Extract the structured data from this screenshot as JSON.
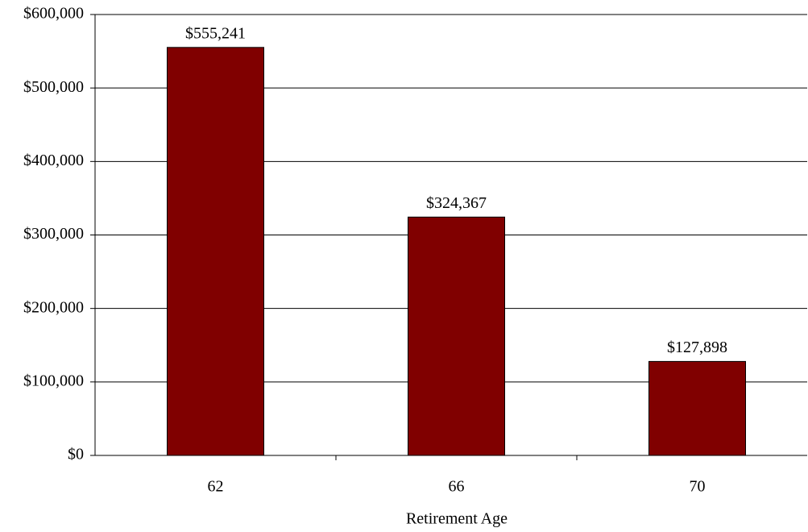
{
  "chart_data": {
    "type": "bar",
    "x_label": "Retirement Age",
    "categories": [
      "62",
      "66",
      "70"
    ],
    "values": [
      555241,
      324367,
      127898
    ],
    "value_labels": [
      "$555,241",
      "$324,367",
      "$127,898"
    ],
    "color": "#800000",
    "ylim": [
      0,
      600000
    ],
    "yticks": [
      {
        "value": 0,
        "label": "$0"
      },
      {
        "value": 100000,
        "label": "$100,000"
      },
      {
        "value": 200000,
        "label": "$200,000"
      },
      {
        "value": 300000,
        "label": "$300,000"
      },
      {
        "value": 400000,
        "label": "$400,000"
      },
      {
        "value": 500000,
        "label": "$500,000"
      },
      {
        "value": 600000,
        "label": "$600,000"
      }
    ],
    "grid": true
  }
}
